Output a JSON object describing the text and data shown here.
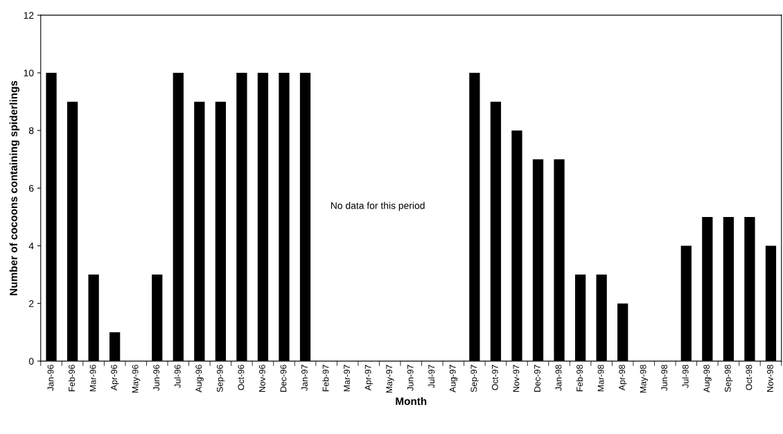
{
  "chart_data": {
    "type": "bar",
    "xlabel": "Month",
    "ylabel": "Number of cocoons containing spiderlings",
    "categories": [
      "Jan-96",
      "Feb-96",
      "Mar-96",
      "Apr-96",
      "May-96",
      "Jun-96",
      "Jul-96",
      "Aug-96",
      "Sep-96",
      "Oct-96",
      "Nov-96",
      "Dec-96",
      "Jan-97",
      "Feb-97",
      "Mar-97",
      "Apr-97",
      "May-97",
      "Jun-97",
      "Jul-97",
      "Aug-97",
      "Sep-97",
      "Oct-97",
      "Nov-97",
      "Dec-97",
      "Jan-98",
      "Feb-98",
      "Mar-98",
      "Apr-98",
      "May-98",
      "Jun-98",
      "Jul-98",
      "Aug-98",
      "Sep-98",
      "Oct-98",
      "Nov-98"
    ],
    "values": [
      10,
      9,
      3,
      1,
      0,
      3,
      10,
      9,
      9,
      10,
      10,
      10,
      10,
      null,
      null,
      null,
      null,
      null,
      null,
      null,
      10,
      9,
      8,
      7,
      7,
      3,
      3,
      2,
      0,
      0,
      4,
      5,
      5,
      5,
      4
    ],
    "color": "#000000",
    "ylim": [
      0,
      12
    ],
    "yticks": [
      0,
      2,
      4,
      6,
      8,
      10,
      12
    ],
    "grid": false,
    "legend": false,
    "annotations": [
      "No data for this period"
    ]
  }
}
